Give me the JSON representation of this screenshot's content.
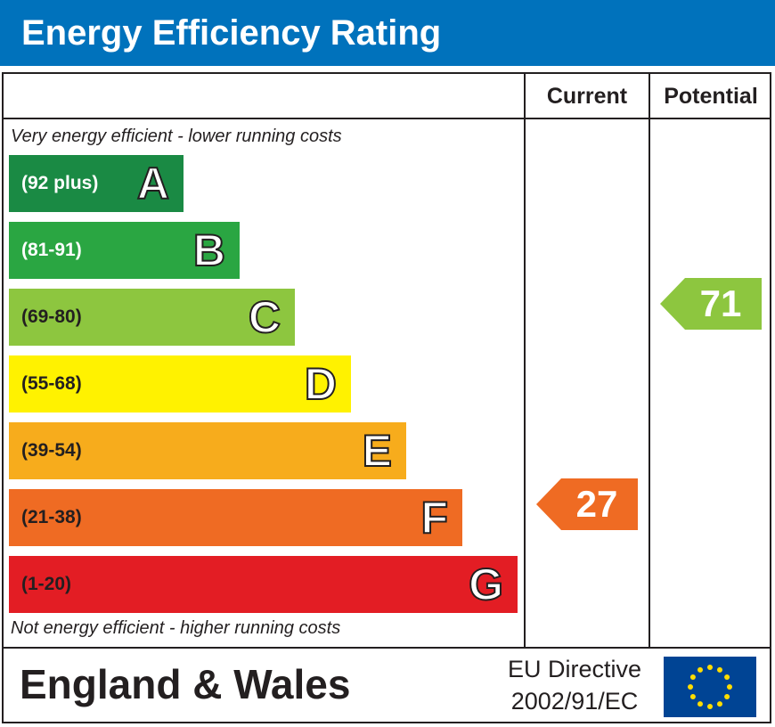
{
  "header": {
    "title": "Energy Efficiency Rating"
  },
  "columns": {
    "current": "Current",
    "potential": "Potential"
  },
  "notes": {
    "top": "Very energy efficient - lower running costs",
    "bottom": "Not energy efficient - higher running costs"
  },
  "footer": {
    "region": "England & Wales",
    "directive_line1": "EU Directive",
    "directive_line2": "2002/91/EC"
  },
  "colors": {
    "A": "#008054",
    "B": "#19b459",
    "C": "#8dce46",
    "D": "#ffd500",
    "E": "#fcaa65",
    "F": "#ef8023",
    "G": "#e9153b"
  },
  "chart_data": {
    "type": "bar",
    "title": "Energy Efficiency Rating",
    "bands": [
      {
        "letter": "A",
        "range": "(92 plus)",
        "color": "#1a8a44"
      },
      {
        "letter": "B",
        "range": "(81-91)",
        "color": "#2aa642"
      },
      {
        "letter": "C",
        "range": "(69-80)",
        "color": "#8dc63f"
      },
      {
        "letter": "D",
        "range": "(55-68)",
        "color": "#fff200"
      },
      {
        "letter": "E",
        "range": "(39-54)",
        "color": "#f7ac1c"
      },
      {
        "letter": "F",
        "range": "(21-38)",
        "color": "#ef6b23"
      },
      {
        "letter": "G",
        "range": "(1-20)",
        "color": "#e31d24"
      }
    ],
    "current": {
      "value": 27,
      "band": "F",
      "color": "#ef6b23"
    },
    "potential": {
      "value": 71,
      "band": "C",
      "color": "#8dc63f"
    }
  }
}
